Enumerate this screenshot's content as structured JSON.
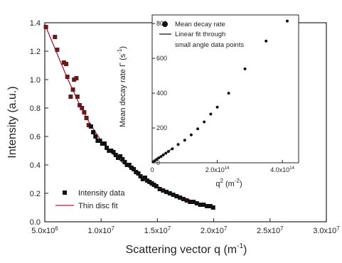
{
  "chart_data": [
    {
      "type": "scatter",
      "xlabel_text": "Scattering vector q (m",
      "xlabel_sup": "-1",
      "xlabel_close": ")",
      "ylabel": "Intensity (a.u.)",
      "xlim": [
        5000000,
        30000000
      ],
      "ylim": [
        0.0,
        1.4
      ],
      "x_ticks": [
        {
          "value": 5000000,
          "mant": "5.0x10",
          "exp": "6"
        },
        {
          "value": 10000000,
          "mant": "1.0x10",
          "exp": "7"
        },
        {
          "value": 15000000,
          "mant": "1.5x10",
          "exp": "7"
        },
        {
          "value": 20000000,
          "mant": "2.0x10",
          "exp": "7"
        },
        {
          "value": 25000000,
          "mant": "2.5x10",
          "exp": "7"
        },
        {
          "value": 30000000,
          "mant": "3.0x10",
          "exp": "7"
        }
      ],
      "y_ticks": [
        {
          "value": 0.0,
          "label": "0.0"
        },
        {
          "value": 0.2,
          "label": "0.2"
        },
        {
          "value": 0.4,
          "label": "0.4"
        },
        {
          "value": 0.6,
          "label": "0.6"
        },
        {
          "value": 0.8,
          "label": "0.8"
        },
        {
          "value": 1.0,
          "label": "1.0"
        },
        {
          "value": 1.2,
          "label": "1.2"
        },
        {
          "value": 1.4,
          "label": "1.4"
        }
      ],
      "legend": {
        "placement": "bottom-left"
      },
      "series": [
        {
          "name": "Intensity data",
          "marker": "square",
          "color": "#111111",
          "color_low_q": "#6a1a1a",
          "x": [
            5100000,
            5900000,
            6100000,
            6700000,
            6900000,
            7000000,
            7300000,
            7500000,
            7600000,
            7800000,
            7900000,
            8100000,
            8300000,
            8500000,
            8700000,
            8900000,
            9100000,
            9300000,
            9500000,
            9700000,
            9900000,
            10100000,
            10300000,
            10500000,
            10700000,
            10900000,
            11100000,
            11300000,
            11500000,
            11700000,
            11900000,
            12100000,
            12300000,
            12500000,
            12700000,
            12900000,
            13100000,
            13300000,
            13500000,
            13700000,
            13900000,
            14100000,
            14300000,
            14500000,
            14700000,
            14900000,
            15200000,
            15500000,
            15800000,
            16100000,
            16400000,
            16700000,
            17000000,
            17300000,
            17600000,
            17900000,
            18200000,
            18500000,
            18800000,
            19100000,
            19400000,
            19700000,
            19950000
          ],
          "y": [
            1.37,
            1.3,
            1.21,
            1.12,
            1.11,
            1.02,
            0.88,
            0.93,
            1.0,
            1.01,
            0.88,
            0.82,
            0.8,
            0.77,
            0.73,
            0.68,
            0.67,
            0.63,
            0.6,
            0.57,
            0.57,
            0.55,
            0.55,
            0.52,
            0.5,
            0.5,
            0.49,
            0.47,
            0.45,
            0.46,
            0.44,
            0.42,
            0.4,
            0.4,
            0.38,
            0.37,
            0.35,
            0.34,
            0.32,
            0.3,
            0.31,
            0.29,
            0.28,
            0.27,
            0.26,
            0.25,
            0.23,
            0.22,
            0.21,
            0.2,
            0.19,
            0.18,
            0.17,
            0.16,
            0.15,
            0.14,
            0.14,
            0.13,
            0.12,
            0.12,
            0.11,
            0.11,
            0.1
          ]
        },
        {
          "name": "Thin disc fit",
          "type": "line",
          "color": "#b01a3a",
          "x": [
            5000000,
            6000000,
            7000000,
            8000000,
            9000000,
            10000000,
            11000000,
            12000000,
            13000000,
            14000000,
            15000000,
            16000000,
            17000000,
            18000000,
            19000000,
            20000000
          ],
          "y": [
            1.39,
            1.2,
            1.01,
            0.84,
            0.69,
            0.57,
            0.48,
            0.41,
            0.35,
            0.3,
            0.25,
            0.21,
            0.18,
            0.15,
            0.12,
            0.1
          ]
        }
      ]
    },
    {
      "type": "scatter",
      "role": "inset",
      "xlabel_text": "q",
      "xlabel_sup": "2",
      "xlabel_unit": " (m",
      "xlabel_unit_sup": "-2",
      "xlabel_close": ")",
      "ylabel_text": "Mean decay rate Γ (s",
      "ylabel_sup": "-1",
      "ylabel_close": ")",
      "xlim": [
        0,
        450000000000000
      ],
      "ylim": [
        0,
        850
      ],
      "x_ticks": [
        {
          "value": 0,
          "label": "0",
          "mant": "",
          "exp": ""
        },
        {
          "value": 200000000000000,
          "label": "",
          "mant": "2.0x10",
          "exp": "14"
        },
        {
          "value": 400000000000000,
          "label": "",
          "mant": "4.0x10",
          "exp": "14"
        }
      ],
      "y_ticks": [
        {
          "value": 0,
          "label": "0"
        },
        {
          "value": 200,
          "label": "200"
        },
        {
          "value": 400,
          "label": "400"
        },
        {
          "value": 600,
          "label": "600"
        },
        {
          "value": 800,
          "label": "800"
        }
      ],
      "legend": {
        "placement": "top-left"
      },
      "series": [
        {
          "name": "Mean decay rate",
          "marker": "circle",
          "color": "#111111",
          "x": [
            3000000000000,
            8000000000000,
            14000000000000,
            20000000000000,
            27000000000000,
            34000000000000,
            42000000000000,
            50000000000000,
            62000000000000,
            80000000000000,
            100000000000000,
            120000000000000,
            140000000000000,
            160000000000000,
            180000000000000,
            200000000000000,
            235000000000000,
            285000000000000,
            350000000000000,
            415000000000000
          ],
          "y": [
            5,
            12,
            20,
            28,
            36,
            45,
            55,
            65,
            80,
            105,
            130,
            160,
            195,
            235,
            280,
            320,
            400,
            540,
            700,
            815
          ]
        },
        {
          "name_lines": [
            "Linear fit through",
            "small angle data points"
          ],
          "type": "line",
          "color": "#111111",
          "x": [
            0,
            60000000000000
          ],
          "y": [
            0,
            80
          ]
        }
      ]
    }
  ]
}
